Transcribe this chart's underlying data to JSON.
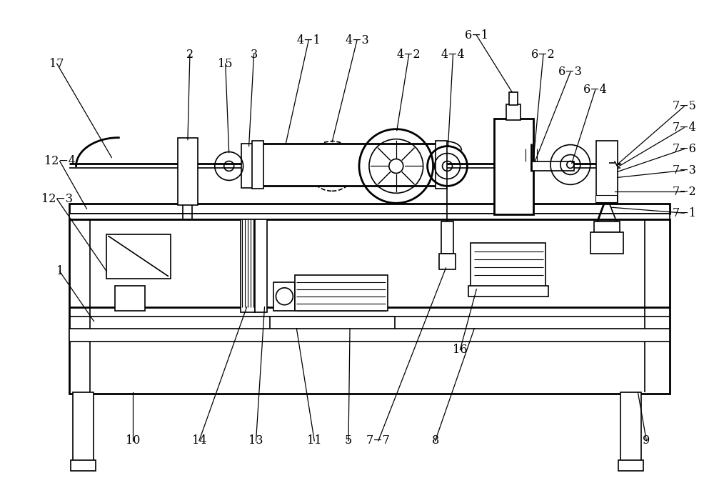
{
  "fig_width": 10.0,
  "fig_height": 7.04,
  "bg_color": "#ffffff",
  "line_color": "#000000",
  "lw_thin": 0.8,
  "lw_med": 1.2,
  "lw_thick": 2.0,
  "lw_label": 0.9,
  "font_size": 11.5,
  "font_family": "serif"
}
